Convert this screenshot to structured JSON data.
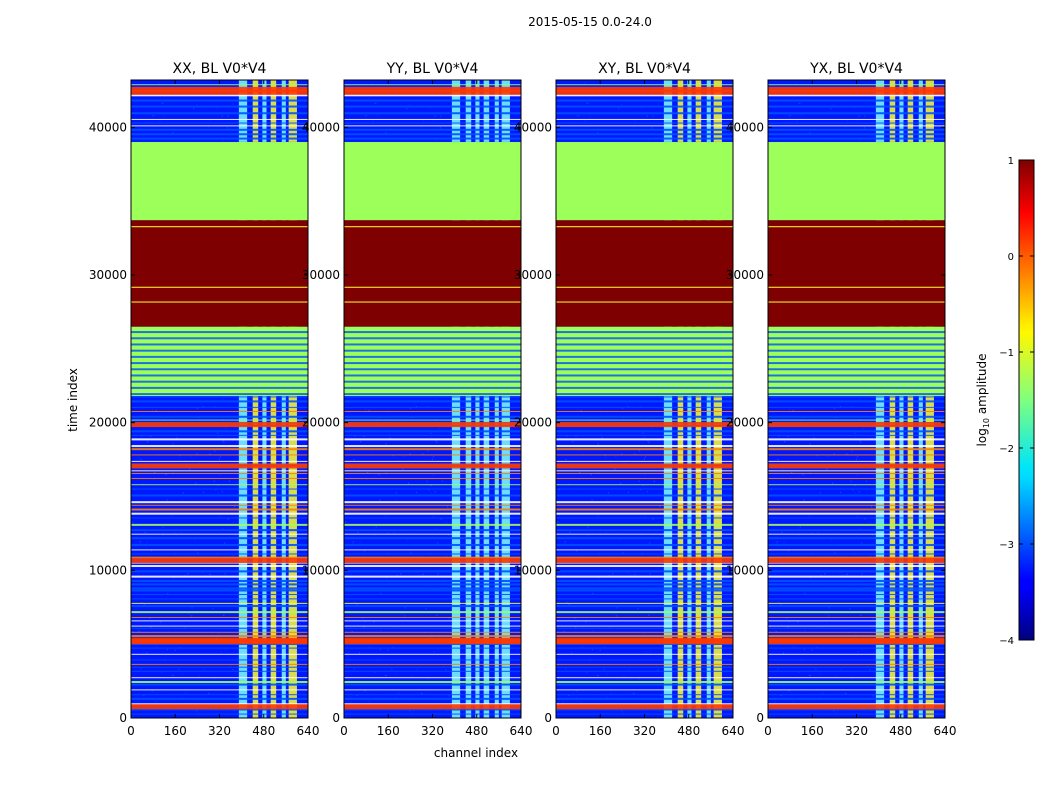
{
  "figure": {
    "suptitle": "2015-05-15 0.0-24.0",
    "xlabel": "channel index",
    "ylabel": "time index"
  },
  "chart_data": {
    "type": "heatmap",
    "title": "2015-05-15 0.0-24.0",
    "xlabel": "channel index",
    "ylabel": "time index",
    "xlim": [
      0,
      640
    ],
    "ylim": [
      0,
      43200
    ],
    "x_ticks": [
      "0",
      "160",
      "320",
      "480",
      "640"
    ],
    "y_ticks": [
      "0",
      "10000",
      "20000",
      "30000",
      "40000"
    ],
    "x_tick_values": [
      0,
      160,
      320,
      480,
      640
    ],
    "y_tick_values": [
      0,
      10000,
      20000,
      30000,
      40000
    ],
    "panels": [
      {
        "title": "XX, BL V0*V4",
        "offset": 0
      },
      {
        "title": "YY, BL V0*V4",
        "offset": 1
      },
      {
        "title": "XY, BL V0*V4",
        "offset": 2
      },
      {
        "title": "YX, BL V0*V4",
        "offset": 3
      }
    ],
    "colorbar": {
      "label": "log10 amplitude",
      "label_main": "log",
      "label_sub": "10",
      "label_rest": " amplitude",
      "range": [
        -4,
        1
      ],
      "ticks": [
        "1",
        "0",
        "−1",
        "−2",
        "−3",
        "−4"
      ],
      "tick_values": [
        1,
        0,
        -1,
        -2,
        -3,
        -4
      ]
    },
    "regions": {
      "saturated_block": {
        "t_start": 26500,
        "t_end": 33700,
        "log10_amplitude": 1.0
      },
      "flat_block": {
        "t_start": 33700,
        "t_end": 39000,
        "log10_amplitude": -1.0
      },
      "flagged_band": {
        "t_start": 21800,
        "t_end": 26500,
        "log10_amplitude": -1.0
      },
      "rfi_channels": [
        [
          390,
          420
        ],
        [
          440,
          460
        ],
        [
          475,
          490
        ],
        [
          505,
          525
        ],
        [
          545,
          560
        ],
        [
          570,
          600
        ]
      ],
      "strong_rows": [
        800,
        5200,
        5300,
        10700,
        17100,
        19900,
        42400,
        42600
      ]
    }
  },
  "colors": {
    "background": "#00009c",
    "noise_a": "#0018ff",
    "noise_b": "#0050ff",
    "rfi_a": "#7fffff",
    "rfi_b": "#ffff30",
    "flat": "#9dff5a",
    "saturated": "#7f0000",
    "flag_row": "#ff8000",
    "flag_row_b": "#ff3800",
    "axis": "#000000"
  }
}
